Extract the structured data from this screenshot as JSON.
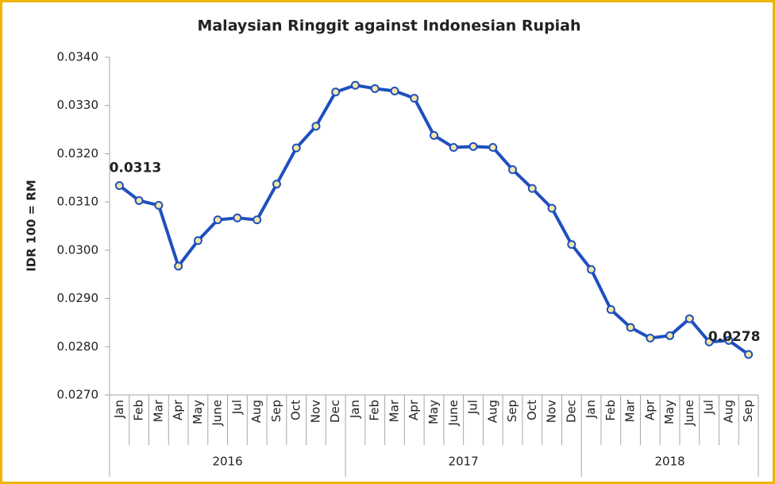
{
  "chart_data": {
    "type": "line",
    "title": "Malaysian Ringgit against Indonesian Rupiah",
    "y_label": "IDR 100 = RM",
    "category_groups": [
      {
        "name": "2016",
        "categories": [
          "Jan",
          "Feb",
          "Mar",
          "Apr",
          "May",
          "June",
          "Jul",
          "Aug",
          "Sep",
          "Oct",
          "Nov",
          "Dec"
        ]
      },
      {
        "name": "2017",
        "categories": [
          "Jan",
          "Feb",
          "Mar",
          "Apr",
          "May",
          "June",
          "Jul",
          "Aug",
          "Sep",
          "Oct",
          "Nov",
          "Dec"
        ]
      },
      {
        "name": "2018",
        "categories": [
          "Jan",
          "Feb",
          "Mar",
          "Apr",
          "May",
          "June",
          "Jul",
          "Aug",
          "Sep"
        ]
      }
    ],
    "series": [
      {
        "name": "IDR 100 = RM",
        "color": "#1f4fbf",
        "marker_fill": "#f3e6a6",
        "values": [
          0.03134,
          0.03103,
          0.03093,
          0.02967,
          0.0302,
          0.03063,
          0.03067,
          0.03063,
          0.03137,
          0.03212,
          0.03257,
          0.03328,
          0.03342,
          0.03335,
          0.0333,
          0.03315,
          0.03238,
          0.03213,
          0.03215,
          0.03213,
          0.03167,
          0.03128,
          0.03087,
          0.03012,
          0.0296,
          0.02877,
          0.0284,
          0.02818,
          0.02823,
          0.02858,
          0.0281,
          0.02813,
          0.02784
        ],
        "value_labels": [
          "0.0313",
          null,
          null,
          null,
          null,
          null,
          null,
          null,
          null,
          null,
          null,
          null,
          null,
          null,
          null,
          null,
          null,
          null,
          null,
          null,
          null,
          null,
          null,
          null,
          null,
          null,
          null,
          null,
          null,
          null,
          null,
          null,
          "0.0278"
        ]
      }
    ],
    "ylim": [
      0.027,
      0.034
    ],
    "yticks": [
      {
        "value": 0.027,
        "label": "0.0270"
      },
      {
        "value": 0.028,
        "label": "0.0280"
      },
      {
        "value": 0.029,
        "label": "0.0290"
      },
      {
        "value": 0.03,
        "label": "0.0300"
      },
      {
        "value": 0.031,
        "label": "0.0310"
      },
      {
        "value": 0.032,
        "label": "0.0320"
      },
      {
        "value": 0.033,
        "label": "0.0330"
      },
      {
        "value": 0.034,
        "label": "0.0340"
      }
    ],
    "grid": false,
    "border_color": "#f0b400"
  }
}
